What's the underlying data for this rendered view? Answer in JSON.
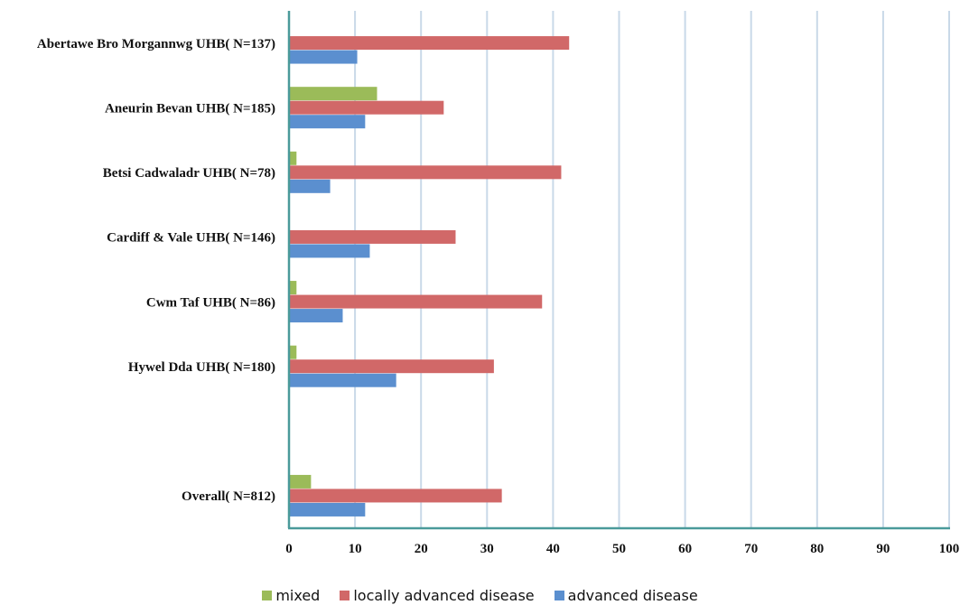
{
  "chart_data": {
    "type": "bar",
    "orientation": "horizontal",
    "categories": [
      "Abertawe Bro Morgannwg UHB( N=137)",
      "Aneurin Bevan UHB( N=185)",
      "Betsi Cadwaladr UHB( N=78)",
      "Cardiff & Vale UHB( N=146)",
      "Cwm Taf UHB( N=86)",
      "Hywel Dda UHB( N=180)",
      "",
      "Overall( N=812)"
    ],
    "series": [
      {
        "name": "mixed",
        "color": "#9bbb59",
        "values": [
          0,
          13.2,
          1,
          0,
          1,
          1,
          null,
          3.2
        ]
      },
      {
        "name": "locally advanced disease",
        "color": "#d16868",
        "values": [
          42.3,
          23.3,
          41.1,
          25.1,
          38.2,
          30.9,
          null,
          32.1
        ]
      },
      {
        "name": "advanced disease",
        "color": "#5b8fcf",
        "values": [
          10.2,
          11.4,
          6.1,
          12.1,
          8.0,
          16.1,
          null,
          11.4
        ]
      }
    ],
    "x_ticks": [
      "0",
      "10",
      "20",
      "30",
      "40",
      "50",
      "60",
      "70",
      "80",
      "90",
      "100"
    ],
    "xlim": [
      0,
      100
    ],
    "grid": true,
    "legend_position": "bottom",
    "title": "",
    "xlabel": "",
    "ylabel": ""
  }
}
